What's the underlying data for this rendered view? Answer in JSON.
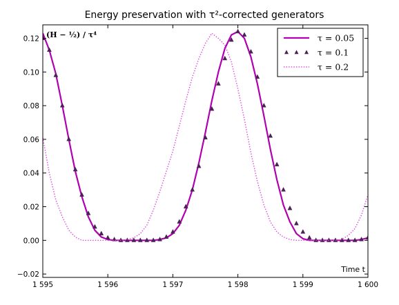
{
  "chart_data": {
    "type": "line",
    "title": "Energy preservation with τ²-corrected generators",
    "ylabel": "(H − ½) / τ⁴",
    "xlabel": "Time t",
    "xlim": [
      1595,
      1600
    ],
    "ylim": [
      -0.022,
      0.128
    ],
    "x_ticks": [
      1595,
      1596,
      1597,
      1598,
      1599,
      1600
    ],
    "x_tick_labels": [
      "1 595",
      "1 596",
      "1 597",
      "1 598",
      "1 599",
      "1 600"
    ],
    "y_ticks": [
      -0.02,
      0.0,
      0.02,
      0.04,
      0.06,
      0.08,
      0.1,
      0.12
    ],
    "y_tick_labels": [
      "−0.02",
      "0.00",
      "0.02",
      "0.04",
      "0.06",
      "0.08",
      "0.10",
      "0.12"
    ],
    "grid": false,
    "legend_position": "top-right",
    "series": [
      {
        "name": "τ = 0.05",
        "style": "solid",
        "color": "#b000b0",
        "x": [
          1595.0,
          1595.1,
          1595.2,
          1595.3,
          1595.4,
          1595.5,
          1595.6,
          1595.7,
          1595.8,
          1595.9,
          1596.0,
          1596.1,
          1596.2,
          1596.3,
          1596.4,
          1596.5,
          1596.6,
          1596.7,
          1596.8,
          1596.9,
          1597.0,
          1597.1,
          1597.2,
          1597.3,
          1597.4,
          1597.5,
          1597.6,
          1597.7,
          1597.8,
          1597.9,
          1598.0,
          1598.1,
          1598.2,
          1598.3,
          1598.4,
          1598.5,
          1598.6,
          1598.7,
          1598.8,
          1598.9,
          1599.0,
          1599.1,
          1599.2,
          1599.3,
          1599.4,
          1599.5,
          1599.6,
          1599.7,
          1599.8,
          1599.9,
          1600.0
        ],
        "y": [
          0.123,
          0.113,
          0.099,
          0.08,
          0.06,
          0.041,
          0.026,
          0.014,
          0.006,
          0.002,
          0.0005,
          0.0,
          0.0,
          0.0,
          0.0,
          0.0,
          0.0,
          0.0,
          0.0005,
          0.0015,
          0.004,
          0.009,
          0.018,
          0.03,
          0.046,
          0.064,
          0.083,
          0.1,
          0.114,
          0.122,
          0.124,
          0.12,
          0.109,
          0.093,
          0.074,
          0.054,
          0.036,
          0.021,
          0.011,
          0.004,
          0.001,
          0.0,
          0.0,
          0.0,
          0.0,
          0.0,
          0.0,
          0.0,
          0.0,
          0.0005,
          0.0015
        ]
      },
      {
        "name": "τ = 0.1",
        "style": "triangle-markers",
        "color": "#4b2255",
        "x": [
          1595.0,
          1595.1,
          1595.2,
          1595.3,
          1595.4,
          1595.5,
          1595.6,
          1595.7,
          1595.8,
          1595.9,
          1596.0,
          1596.1,
          1596.2,
          1596.3,
          1596.4,
          1596.5,
          1596.6,
          1596.7,
          1596.8,
          1596.9,
          1597.0,
          1597.1,
          1597.2,
          1597.3,
          1597.4,
          1597.5,
          1597.6,
          1597.7,
          1597.8,
          1597.9,
          1598.0,
          1598.1,
          1598.2,
          1598.3,
          1598.4,
          1598.5,
          1598.6,
          1598.7,
          1598.8,
          1598.9,
          1599.0,
          1599.1,
          1599.2,
          1599.3,
          1599.4,
          1599.5,
          1599.6,
          1599.7,
          1599.8,
          1599.9,
          1600.0
        ],
        "y": [
          0.12,
          0.113,
          0.098,
          0.08,
          0.06,
          0.042,
          0.027,
          0.016,
          0.008,
          0.004,
          0.0015,
          0.0005,
          0.0,
          0.0,
          0.0,
          0.0,
          0.0,
          0.0,
          0.0005,
          0.002,
          0.005,
          0.011,
          0.02,
          0.03,
          0.044,
          0.061,
          0.078,
          0.093,
          0.108,
          0.119,
          0.124,
          0.122,
          0.112,
          0.097,
          0.08,
          0.062,
          0.045,
          0.03,
          0.019,
          0.01,
          0.005,
          0.0015,
          0.0,
          0.0,
          0.0,
          0.0,
          0.0,
          0.0,
          0.0,
          0.0005,
          0.0015
        ]
      },
      {
        "name": "τ = 0.2",
        "style": "dotted",
        "color": "#e040e0",
        "x": [
          1595.0,
          1595.1,
          1595.2,
          1595.3,
          1595.4,
          1595.5,
          1595.6,
          1595.7,
          1595.8,
          1595.9,
          1596.0,
          1596.1,
          1596.2,
          1596.3,
          1596.4,
          1596.5,
          1596.6,
          1596.7,
          1596.8,
          1596.9,
          1597.0,
          1597.1,
          1597.2,
          1597.3,
          1597.4,
          1597.5,
          1597.6,
          1597.7,
          1597.8,
          1597.9,
          1598.0,
          1598.1,
          1598.2,
          1598.3,
          1598.4,
          1598.5,
          1598.6,
          1598.7,
          1598.8,
          1598.9,
          1599.0,
          1599.1,
          1599.2,
          1599.3,
          1599.4,
          1599.5,
          1599.6,
          1599.7,
          1599.8,
          1599.9,
          1600.0
        ],
        "y": [
          0.061,
          0.04,
          0.024,
          0.014,
          0.006,
          0.002,
          0.0,
          0.0,
          0.0,
          0.0,
          0.0,
          0.0,
          0.0,
          0.0005,
          0.0015,
          0.004,
          0.009,
          0.018,
          0.029,
          0.041,
          0.053,
          0.068,
          0.083,
          0.097,
          0.108,
          0.117,
          0.123,
          0.12,
          0.116,
          0.106,
          0.09,
          0.072,
          0.052,
          0.035,
          0.021,
          0.011,
          0.005,
          0.002,
          0.0005,
          0.0,
          0.0,
          0.0,
          0.0,
          0.0,
          0.0,
          0.0,
          0.0005,
          0.003,
          0.007,
          0.015,
          0.027
        ]
      }
    ]
  }
}
